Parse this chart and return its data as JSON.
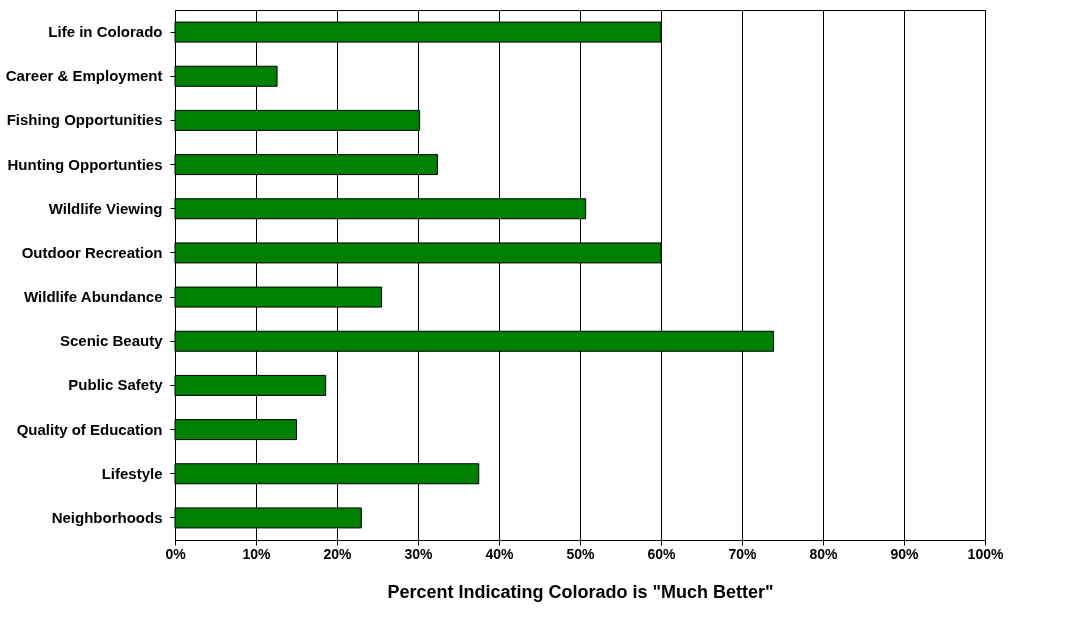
{
  "chart_data": {
    "type": "bar",
    "orientation": "horizontal",
    "xlabel": "Percent Indicating Colorado is \"Much Better\"",
    "categories": [
      "Life in Colorado",
      "Career & Employment",
      "Fishing Opportunities",
      "Hunting Opportunties",
      "Wildlife Viewing",
      "Outdoor Recreation",
      "Wildlife Abundance",
      "Scenic Beauty",
      "Public Safety",
      "Quality of Education",
      "Lifestyle",
      "Neighborhoods"
    ],
    "values": [
      60,
      12.6,
      30.2,
      32.4,
      50.7,
      60,
      25.5,
      73.9,
      18.6,
      15,
      37.5,
      23
    ],
    "color": "#008000",
    "xlim": [
      0,
      100
    ],
    "xticks": [
      {
        "value": 0,
        "label": "0%"
      },
      {
        "value": 10,
        "label": "10%"
      },
      {
        "value": 20,
        "label": "20%"
      },
      {
        "value": 30,
        "label": "30%"
      },
      {
        "value": 40,
        "label": "40%"
      },
      {
        "value": 50,
        "label": "50%"
      },
      {
        "value": 60,
        "label": "60%"
      },
      {
        "value": 70,
        "label": "70%"
      },
      {
        "value": 80,
        "label": "80%"
      },
      {
        "value": 90,
        "label": "90%"
      },
      {
        "value": 100,
        "label": "100%"
      }
    ],
    "grid": "x"
  }
}
